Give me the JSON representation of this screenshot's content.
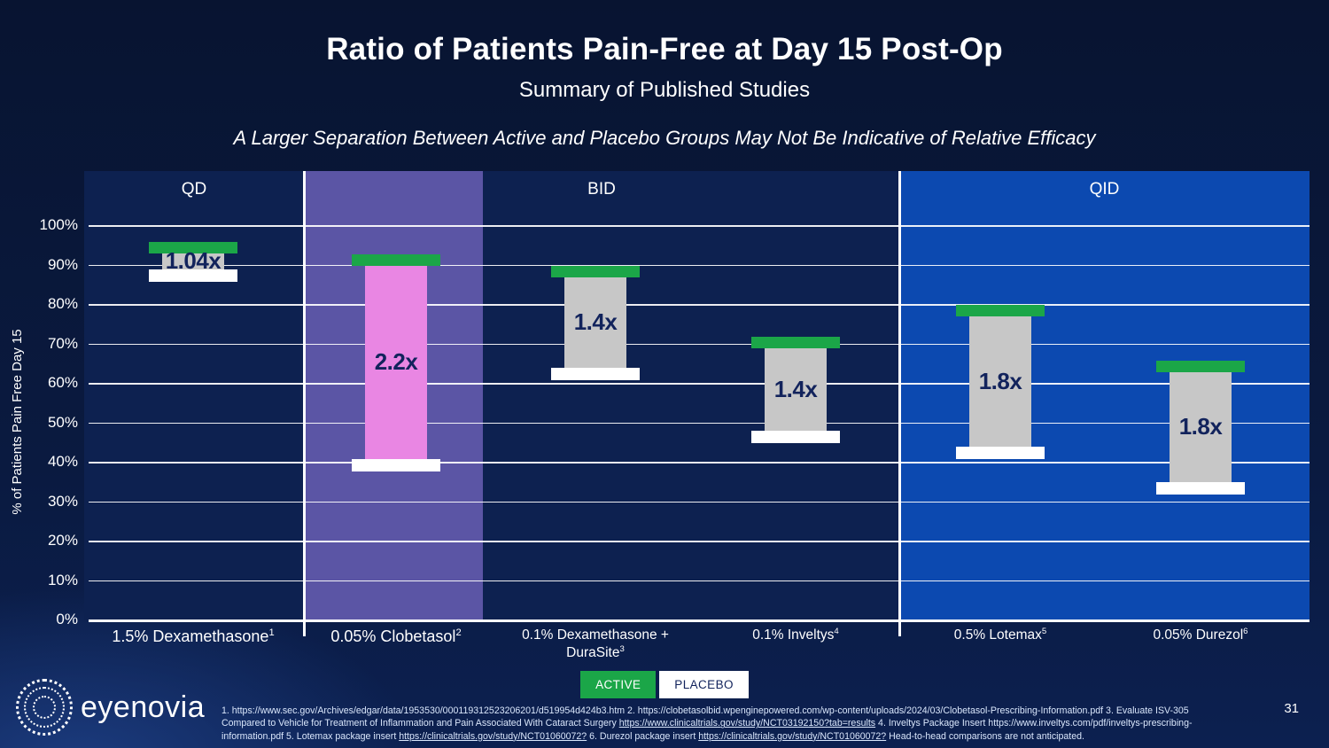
{
  "slide": {
    "title": "Ratio of Patients Pain-Free at Day 15 Post-Op",
    "subtitle": "Summary of Published Studies",
    "tagline": "A Larger Separation Between Active and Placebo Groups May Not Be Indicative of Relative Efficacy",
    "page_number": "31",
    "logo_text": "eyenovia"
  },
  "chart_data": {
    "type": "bar",
    "title": "Ratio of Patients Pain-Free at Day 15 Post-Op",
    "ylabel": "% of Patients Pain Free Day 15",
    "ylim": [
      0,
      100
    ],
    "ytick_step": 10,
    "grid": true,
    "sections": [
      {
        "label": "QD",
        "category_indices": [
          0
        ]
      },
      {
        "label": "BID",
        "category_indices": [
          1,
          2,
          3
        ]
      },
      {
        "label": "QID",
        "category_indices": [
          4,
          5
        ]
      }
    ],
    "categories": [
      {
        "label_lines": [
          {
            "text": "1.5% Dexamethasone",
            "sup": "1"
          }
        ],
        "section": "QD",
        "active_pct": 93,
        "placebo_pct": 89,
        "ratio_label": "1.04x",
        "bar_style": "gray",
        "highlighted": false
      },
      {
        "label_lines": [
          {
            "text": "0.05% Clobetasol",
            "sup": "2"
          }
        ],
        "section": "BID",
        "active_pct": 90,
        "placebo_pct": 41,
        "ratio_label": "2.2x",
        "bar_style": "pink",
        "highlighted": true
      },
      {
        "label_lines": [
          {
            "text": "0.1% Dexamethasone +"
          },
          {
            "text": "DuraSite",
            "sup": "3"
          }
        ],
        "section": "BID",
        "active_pct": 87,
        "placebo_pct": 64,
        "ratio_label": "1.4x",
        "bar_style": "gray",
        "highlighted": false
      },
      {
        "label_lines": [
          {
            "text": "0.1% Inveltys",
            "sup": "4"
          }
        ],
        "section": "BID",
        "active_pct": 69,
        "placebo_pct": 48,
        "ratio_label": "1.4x",
        "bar_style": "gray",
        "highlighted": false
      },
      {
        "label_lines": [
          {
            "text": "0.5% Lotemax",
            "sup": "5"
          }
        ],
        "section": "QID",
        "active_pct": 77,
        "placebo_pct": 44,
        "ratio_label": "1.8x",
        "bar_style": "gray",
        "highlighted": false
      },
      {
        "label_lines": [
          {
            "text": "0.05% Durezol",
            "sup": "6"
          }
        ],
        "section": "QID",
        "active_pct": 63,
        "placebo_pct": 35,
        "ratio_label": "1.8x",
        "bar_style": "gray",
        "highlighted": false
      }
    ],
    "series_meaning": {
      "active": "top of gray column (green cap)",
      "placebo": "bottom of gray column (white cap)"
    }
  },
  "legend": {
    "active_label": "ACTIVE",
    "placebo_label": "PLACEBO"
  },
  "colors": {
    "active_green": "#1BA648",
    "placebo_white": "#FFFFFF",
    "bar_gray": "#C7C7C7",
    "bar_pink": "#E986E3",
    "highlight_purple": "#5B55A5",
    "qid_section_blue": "#0C49B0",
    "plot_background_navy": "#0D2150",
    "ratio_text_navy": "#12235C",
    "legend_placebo_text": "#12235C",
    "gridline_white": "#FFFFFF"
  },
  "footnotes": {
    "lines": [
      {
        "segments": [
          {
            "text": "1. https://www.sec.gov/Archives/edgar/data/1953530/000119312523206201/d519954d424b3.htm 2. https://clobetasolbid.wpenginepowered.com/wp-content/uploads/2024/03/Clobetasol-Prescribing-Information.pdf  3. Evaluate ISV-305",
            "underline": false
          }
        ]
      },
      {
        "segments": [
          {
            "text": "Compared to Vehicle for Treatment of Inflammation and Pain Associated With Cataract Surgery ",
            "underline": false
          },
          {
            "text": "https://www.clinicaltrials.gov/study/NCT03192150?tab=results",
            "underline": true
          },
          {
            "text": " 4. Inveltys Package Insert https://www.inveltys.com/pdf/inveltys-prescribing-",
            "underline": false
          }
        ]
      },
      {
        "segments": [
          {
            "text": "information.pdf 5. Lotemax package insert ",
            "underline": false
          },
          {
            "text": "https://clinicaltrials.gov/study/NCT01060072?",
            "underline": true
          },
          {
            "text": " 6. Durezol package insert ",
            "underline": false
          },
          {
            "text": "https://clinicaltrials.gov/study/NCT01060072?",
            "underline": true
          },
          {
            "text": "  Head-to-head comparisons are not anticipated.",
            "underline": false
          }
        ]
      }
    ]
  }
}
